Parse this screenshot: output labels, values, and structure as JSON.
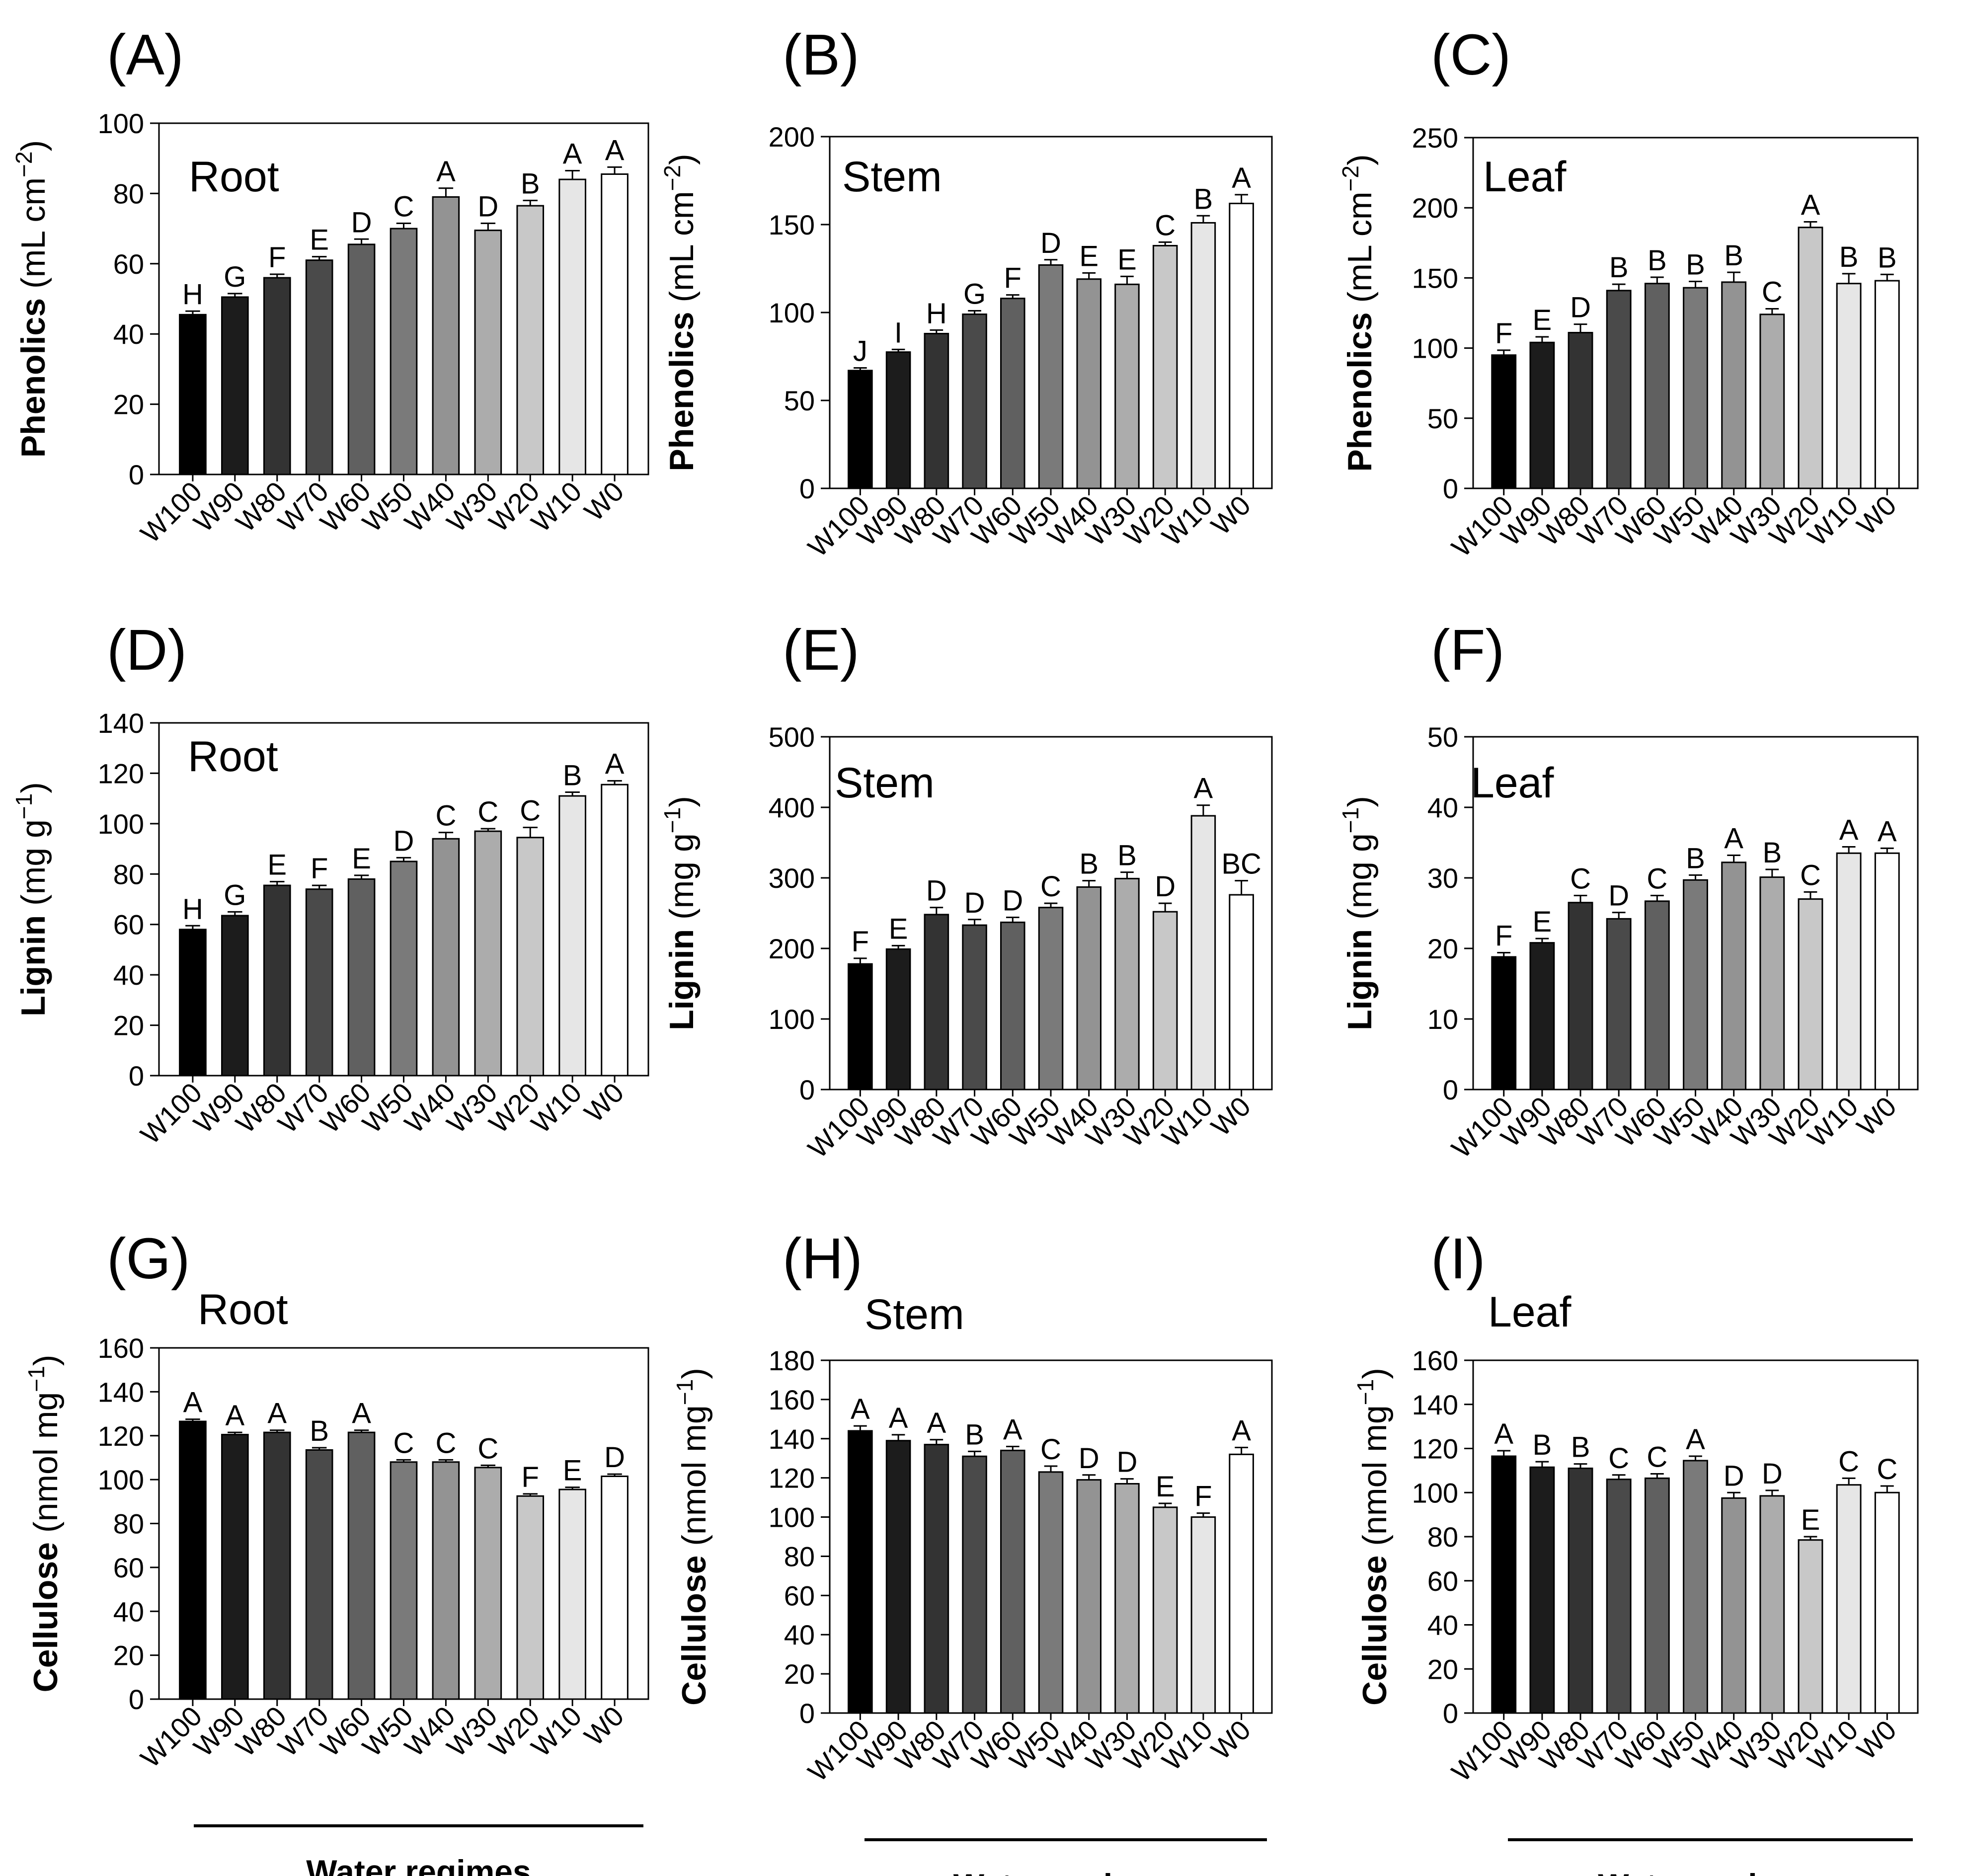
{
  "categories": [
    "W100",
    "W90",
    "W80",
    "W70",
    "W60",
    "W50",
    "W40",
    "W30",
    "W20",
    "W10",
    "W0"
  ],
  "bar_colors": [
    "#000000",
    "#1c1c1c",
    "#333333",
    "#4a4a4a",
    "#606060",
    "#7a7a7a",
    "#939393",
    "#acacac",
    "#c8c8c8",
    "#e6e6e6",
    "#ffffff"
  ],
  "group_label": "Water regimes",
  "chart_data": [
    {
      "type": "bar",
      "panel": "(A)",
      "title": "Root",
      "ylabel_bold": "Phenolics",
      "ylabel_unit": " (mL cm",
      "ylabel_sup": "−2",
      "ylabel_close": ")",
      "ylim": [
        0,
        100
      ],
      "yticks": [
        0,
        20,
        40,
        60,
        80,
        100
      ],
      "values": [
        45.5,
        50.5,
        56,
        61,
        65.5,
        70,
        79,
        69.5,
        76.5,
        84,
        85.5
      ],
      "errors": [
        1,
        1,
        1,
        1,
        1.5,
        1.5,
        2.5,
        2,
        1.5,
        2.5,
        2
      ],
      "letters": [
        "H",
        "G",
        "F",
        "E",
        "D",
        "C",
        "A",
        "D",
        "B",
        "A",
        "A"
      ]
    },
    {
      "type": "bar",
      "panel": "(B)",
      "title": "Stem",
      "ylabel_bold": "Phenolics",
      "ylabel_unit": " (mL cm",
      "ylabel_sup": "−2",
      "ylabel_close": ")",
      "ylim": [
        0,
        200
      ],
      "yticks": [
        0,
        50,
        100,
        150,
        200
      ],
      "values": [
        67,
        77.5,
        88,
        99,
        108,
        127,
        119,
        116,
        138,
        151,
        162
      ],
      "errors": [
        1.5,
        1.5,
        2,
        2,
        2,
        3,
        3.5,
        4.5,
        2,
        4,
        5
      ],
      "letters": [
        "J",
        "I",
        "H",
        "G",
        "F",
        "D",
        "E",
        "E",
        "C",
        "B",
        "A"
      ]
    },
    {
      "type": "bar",
      "panel": "(C)",
      "title": "Leaf",
      "ylabel_bold": "Phenolics",
      "ylabel_unit": " (mL cm",
      "ylabel_sup": "−2",
      "ylabel_close": ")",
      "ylim": [
        0,
        250
      ],
      "yticks": [
        0,
        50,
        100,
        150,
        200,
        250
      ],
      "values": [
        95,
        104,
        111,
        141,
        146,
        143,
        147,
        124,
        186,
        146,
        148
      ],
      "errors": [
        3.5,
        4,
        6,
        4.5,
        4.5,
        4.5,
        7,
        4,
        4,
        7,
        4.5
      ],
      "letters": [
        "F",
        "E",
        "D",
        "B",
        "B",
        "B",
        "B",
        "C",
        "A",
        "B",
        "B"
      ]
    },
    {
      "type": "bar",
      "panel": "(D)",
      "title": "Root",
      "ylabel_bold": "Lignin",
      "ylabel_unit": " (mg g",
      "ylabel_sup": "−1",
      "ylabel_close": ")",
      "ylim": [
        0,
        140
      ],
      "yticks": [
        0,
        20,
        40,
        60,
        80,
        100,
        120,
        140
      ],
      "values": [
        58,
        63.5,
        75.5,
        74,
        78,
        85,
        94,
        97,
        94.5,
        111,
        115.5
      ],
      "errors": [
        1.5,
        1.5,
        1.5,
        1.5,
        1.5,
        1.5,
        2.5,
        1,
        4,
        1.5,
        1.5
      ],
      "letters": [
        "H",
        "G",
        "E",
        "F",
        "E",
        "D",
        "C",
        "C",
        "C",
        "B",
        "A"
      ]
    },
    {
      "type": "bar",
      "panel": "(E)",
      "title": "Stem",
      "ylabel_bold": "Lignin",
      "ylabel_unit": " (mg g",
      "ylabel_sup": "−1",
      "ylabel_close": ")",
      "ylim": [
        0,
        500
      ],
      "yticks": [
        0,
        100,
        200,
        300,
        400,
        500
      ],
      "values": [
        178,
        199,
        248,
        233,
        237,
        258,
        287,
        299,
        252,
        388,
        276
      ],
      "errors": [
        8,
        5,
        10,
        8,
        7,
        6,
        9,
        9,
        12,
        15,
        20
      ],
      "letters": [
        "F",
        "E",
        "D",
        "D",
        "D",
        "C",
        "B",
        "B",
        "D",
        "A",
        "BC"
      ]
    },
    {
      "type": "bar",
      "panel": "(F)",
      "title": "Leaf",
      "ylabel_bold": "Lignin",
      "ylabel_unit": " (mg g",
      "ylabel_sup": "−1",
      "ylabel_close": ")",
      "ylim": [
        0,
        50
      ],
      "yticks": [
        0,
        10,
        20,
        30,
        40,
        50
      ],
      "values": [
        18.8,
        20.8,
        26.5,
        24.2,
        26.7,
        29.7,
        32.2,
        30.1,
        27,
        33.5,
        33.5
      ],
      "errors": [
        0.6,
        0.6,
        1,
        0.9,
        0.8,
        0.7,
        1,
        1.1,
        1,
        0.9,
        0.7
      ],
      "letters": [
        "F",
        "E",
        "C",
        "D",
        "C",
        "B",
        "A",
        "B",
        "C",
        "A",
        "A"
      ]
    },
    {
      "type": "bar",
      "panel": "(G)",
      "title": "Root",
      "ylabel_bold": "Cellulose",
      "ylabel_unit": " (nmol mg",
      "ylabel_sup": "−1",
      "ylabel_close": ")",
      "ylim": [
        0,
        160
      ],
      "yticks": [
        0,
        20,
        40,
        60,
        80,
        100,
        120,
        140,
        160
      ],
      "values": [
        126.5,
        120.5,
        121.5,
        113.5,
        121.5,
        108,
        108,
        105.5,
        92.5,
        95.5,
        101.5
      ],
      "errors": [
        1,
        1,
        1,
        1,
        1,
        1,
        1,
        1,
        1,
        1,
        1
      ],
      "letters": [
        "A",
        "A",
        "A",
        "B",
        "A",
        "C",
        "C",
        "C",
        "F",
        "E",
        "D"
      ]
    },
    {
      "type": "bar",
      "panel": "(H)",
      "title": "Stem",
      "ylabel_bold": "Cellulose",
      "ylabel_unit": " (nmol mg",
      "ylabel_sup": "−1",
      "ylabel_close": ")",
      "ylim": [
        0,
        180
      ],
      "yticks": [
        0,
        20,
        40,
        60,
        80,
        100,
        120,
        140,
        160,
        180
      ],
      "values": [
        144,
        139,
        137,
        131,
        134,
        123,
        119,
        117,
        105,
        100,
        132
      ],
      "errors": [
        2.5,
        3,
        2.5,
        2.5,
        2,
        3,
        2.5,
        2.5,
        2,
        2,
        3.5
      ],
      "letters": [
        "A",
        "A",
        "A",
        "B",
        "A",
        "C",
        "D",
        "D",
        "E",
        "F",
        "A"
      ]
    },
    {
      "type": "bar",
      "panel": "(I)",
      "title": "Leaf",
      "ylabel_bold": "Cellulose",
      "ylabel_unit": " (nmol mg",
      "ylabel_sup": "−1",
      "ylabel_close": ")",
      "ylim": [
        0,
        160
      ],
      "yticks": [
        0,
        20,
        40,
        60,
        80,
        100,
        120,
        140,
        160
      ],
      "values": [
        116.5,
        111.5,
        111,
        106,
        106.5,
        114.5,
        97.5,
        98.5,
        78.5,
        103.5,
        100
      ],
      "errors": [
        2.5,
        2.5,
        2,
        2,
        2,
        2,
        2.5,
        2.5,
        1.5,
        3,
        3
      ],
      "letters": [
        "A",
        "B",
        "B",
        "C",
        "C",
        "A",
        "D",
        "D",
        "E",
        "C",
        "C"
      ]
    }
  ]
}
